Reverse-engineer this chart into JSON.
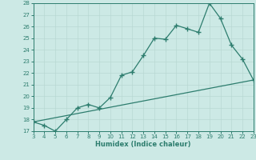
{
  "line1_x": [
    3,
    4,
    5,
    6,
    7,
    8,
    9,
    10,
    11,
    12,
    13,
    14,
    15,
    16,
    17,
    18,
    19,
    20,
    21,
    22,
    23
  ],
  "line1_y": [
    17.8,
    17.5,
    17.0,
    18.0,
    19.0,
    19.3,
    19.0,
    19.9,
    21.8,
    22.1,
    23.5,
    25.0,
    24.9,
    26.1,
    25.8,
    25.5,
    28.0,
    26.7,
    24.4,
    23.2,
    21.4
  ],
  "line2_x": [
    3,
    23
  ],
  "line2_y": [
    17.8,
    21.4
  ],
  "line_color": "#2d7d6e",
  "bg_color": "#cce9e5",
  "grid_color": "#b8d8d3",
  "xlabel": "Humidex (Indice chaleur)",
  "xlim": [
    3,
    23
  ],
  "ylim": [
    17,
    28
  ],
  "yticks": [
    17,
    18,
    19,
    20,
    21,
    22,
    23,
    24,
    25,
    26,
    27,
    28
  ],
  "xticks": [
    3,
    4,
    5,
    6,
    7,
    8,
    9,
    10,
    11,
    12,
    13,
    14,
    15,
    16,
    17,
    18,
    19,
    20,
    21,
    22,
    23
  ],
  "marker": "+",
  "markersize": 4,
  "linewidth": 0.9,
  "tick_fontsize": 5,
  "xlabel_fontsize": 6
}
